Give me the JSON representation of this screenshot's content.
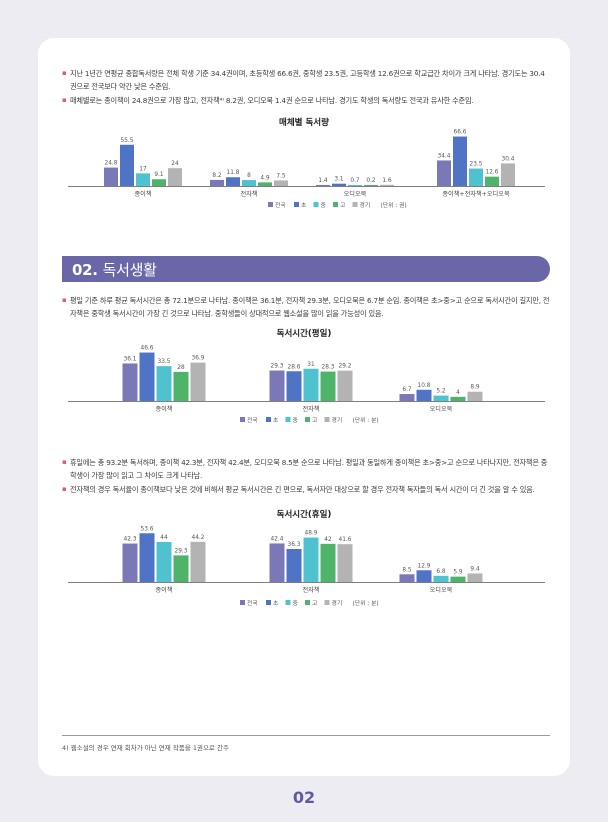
{
  "top_bullets": [
    "지난 1년간 연평균 종합독서량은 전체 학생 기준 34.4권이며, 초등학생 66.6권, 중학생 23.5권, 고등학생 12.6권으로 학교급간 차이가 크게 나타남. 경기도는 30.4권으로 전국보다 약간 낮은 수준임.",
    "매체별로는 종이책이 24.8권으로 가장 많고, 전자책⁴⁾ 8.2권, 오디오북 1.4권 순으로 나타남. 경기도 학생의 독서량도 전국과 유사한 수준임."
  ],
  "section": {
    "number": "02.",
    "title": "독서생활"
  },
  "mid_bullets": [
    "평일 기준 하루 평균 독서시간은 총 72.1분으로 나타남. 종이책은 36.1분, 전자책 29.3분, 오디오북은 6.7분 순임. 종이책은 초>중>고 순으로 독서시간이 길지만, 전자책은 중학생 독서시간이 가장 긴 것으로 나타남. 중학생들이 상대적으로 웹소설을 많이 읽을 가능성이 있음."
  ],
  "bottom_bullets": [
    "휴일에는 총 93.2분 독서하며, 종이책 42.3분, 전자책 42.4분, 오디오북 8.5분 순으로 나타남. 평일과 동일하게 종이책은 초>중>고 순으로 나타나지만, 전자책은 중학생이 가장 많이 읽고 그 차이도 크게 나타남.",
    "전자책의 경우 독서율이 종이책보다 낮은 것에 비해서 평균 독서시간은 긴 편으로, 독서자만 대상으로 할 경우 전자책 독자들의 독서 시간이 더 긴 것을 알 수 있음."
  ],
  "footnote": "4) 웹소설의 경우 연재 회차가 아닌 연재 작품을 1권으로 간주",
  "page_number": "02",
  "colors": {
    "section": "#6a67a8",
    "bullet": "#e05a78",
    "series": [
      "#7b78b8",
      "#4f73c5",
      "#4fc1cf",
      "#4fb46a",
      "#b3b3b3"
    ]
  },
  "chart_data": [
    {
      "type": "bar",
      "title": "매체별 독서량",
      "categories": [
        "종이책",
        "전자책",
        "오디오북",
        "종이책+전자책+오디오북"
      ],
      "series": [
        {
          "name": "전국",
          "values": [
            24.8,
            8.2,
            1.4,
            34.4
          ]
        },
        {
          "name": "초",
          "values": [
            55.5,
            11.8,
            3.1,
            66.6
          ]
        },
        {
          "name": "중",
          "values": [
            17,
            8,
            0.7,
            23.5
          ]
        },
        {
          "name": "고",
          "values": [
            9.1,
            4.9,
            0.2,
            12.6
          ]
        },
        {
          "name": "경기",
          "values": [
            24,
            7.5,
            1.6,
            30.4
          ]
        }
      ],
      "unit": "(단위 : 권)",
      "ylim": [
        0,
        70
      ],
      "legend": "bottom"
    },
    {
      "type": "bar",
      "title": "독서시간(평일)",
      "categories": [
        "종이책",
        "전자책",
        "오디오북"
      ],
      "series": [
        {
          "name": "전국",
          "values": [
            36.1,
            29.3,
            6.7
          ]
        },
        {
          "name": "초",
          "values": [
            46.6,
            28.6,
            10.8
          ]
        },
        {
          "name": "중",
          "values": [
            33.5,
            31,
            5.2
          ]
        },
        {
          "name": "고",
          "values": [
            28,
            28.3,
            4
          ]
        },
        {
          "name": "경기",
          "values": [
            36.9,
            29.2,
            8.9
          ]
        }
      ],
      "unit": "(단위 : 분)",
      "ylim": [
        0,
        50
      ],
      "legend": "bottom"
    },
    {
      "type": "bar",
      "title": "독서시간(휴일)",
      "categories": [
        "종이책",
        "전자책",
        "오디오북"
      ],
      "series": [
        {
          "name": "전국",
          "values": [
            42.3,
            42.4,
            8.5
          ]
        },
        {
          "name": "초",
          "values": [
            53.6,
            36.3,
            12.9
          ]
        },
        {
          "name": "중",
          "values": [
            44,
            48.9,
            6.8
          ]
        },
        {
          "name": "고",
          "values": [
            29.3,
            42,
            5.9
          ]
        },
        {
          "name": "경기",
          "values": [
            44.2,
            41.6,
            9.4
          ]
        }
      ],
      "unit": "(단위 : 분)",
      "ylim": [
        0,
        55
      ],
      "legend": "bottom"
    }
  ]
}
